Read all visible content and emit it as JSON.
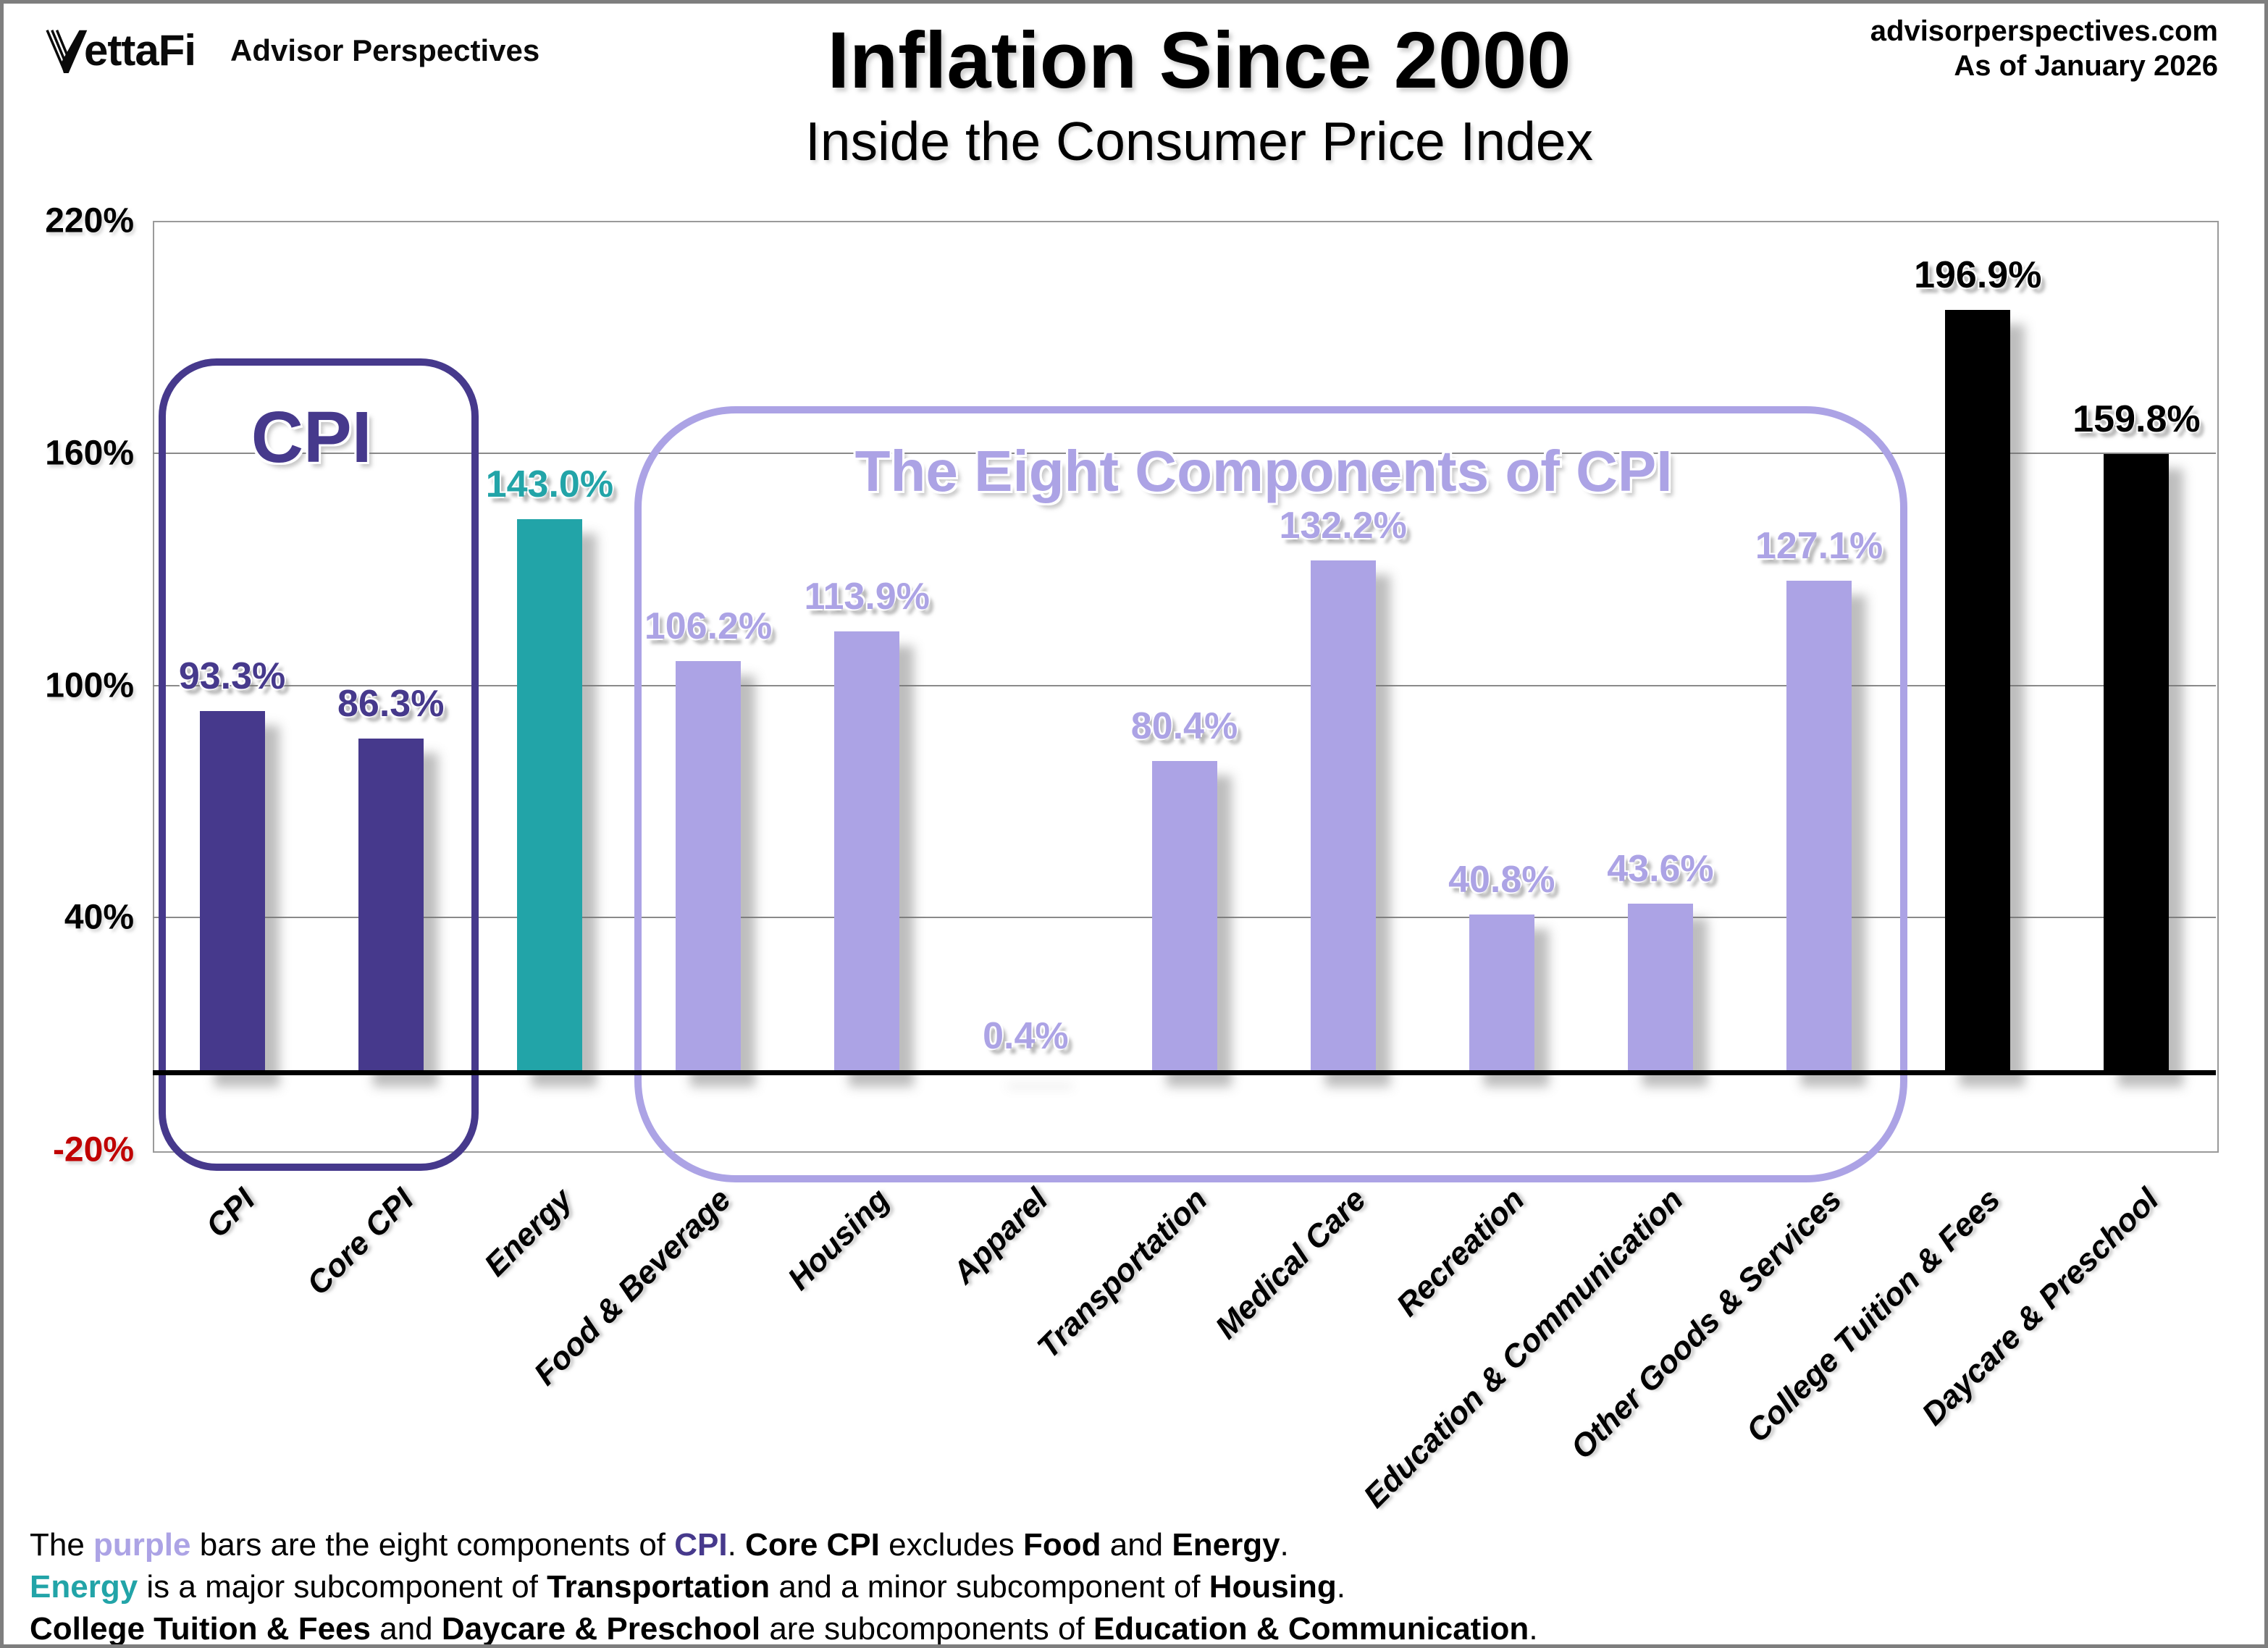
{
  "header": {
    "logo_text": "ettaFi",
    "logo_sub": "Advisor Perspectives",
    "title": "Inflation Since 2000",
    "subtitle": "Inside the Consumer Price Index",
    "source_site": "advisorperspectives.com",
    "as_of": "As of January 2026"
  },
  "colors": {
    "dark_purple": "#46398C",
    "light_purple": "#ACA3E5",
    "teal": "#22A4A8",
    "black": "#000000",
    "red": "#C00000",
    "grid": "#8A8A8A"
  },
  "chart_data": {
    "type": "bar",
    "title": "Inflation Since 2000",
    "subtitle": "Inside the Consumer Price Index",
    "categories": [
      "CPI",
      "Core CPI",
      "Energy",
      "Food & Beverage",
      "Housing",
      "Apparel",
      "Transportation",
      "Medical Care",
      "Recreation",
      "Education & Communication",
      "Other Goods & Services",
      "College Tuition & Fees",
      "Daycare & Preschool"
    ],
    "values": [
      93.3,
      86.3,
      143.0,
      106.2,
      113.9,
      0.4,
      80.4,
      132.2,
      40.8,
      43.6,
      127.1,
      196.9,
      159.8
    ],
    "value_labels": [
      "93.3%",
      "86.3%",
      "143.0%",
      "106.2%",
      "113.9%",
      "0.4%",
      "80.4%",
      "132.2%",
      "40.8%",
      "43.6%",
      "127.1%",
      "196.9%",
      "159.8%"
    ],
    "bar_colors": [
      "#46398C",
      "#46398C",
      "#22A4A8",
      "#ACA3E5",
      "#ACA3E5",
      "#ACA3E5",
      "#ACA3E5",
      "#ACA3E5",
      "#ACA3E5",
      "#ACA3E5",
      "#ACA3E5",
      "#000000",
      "#000000"
    ],
    "label_colors": [
      "#46398C",
      "#46398C",
      "#22A4A8",
      "#ACA3E5",
      "#ACA3E5",
      "#ACA3E5",
      "#ACA3E5",
      "#ACA3E5",
      "#ACA3E5",
      "#ACA3E5",
      "#ACA3E5",
      "#000000",
      "#000000"
    ],
    "ylim": [
      -20,
      220
    ],
    "yticks": [
      {
        "label": "220%",
        "value": 220,
        "color": "#000000"
      },
      {
        "label": "160%",
        "value": 160,
        "color": "#000000"
      },
      {
        "label": "100%",
        "value": 100,
        "color": "#000000"
      },
      {
        "label": "40%",
        "value": 40,
        "color": "#000000"
      },
      {
        "label": "-20%",
        "value": -20,
        "color": "#C00000"
      }
    ],
    "grid": true,
    "zero_line": 0,
    "legend": "none",
    "annotations": [
      {
        "id": "cpi-box",
        "label": "CPI",
        "color": "#46398C",
        "from_cat": 0,
        "to_cat": 1,
        "title_font": 100
      },
      {
        "id": "components-box",
        "label": "The Eight Components of CPI",
        "color": "#ACA3E5",
        "from_cat": 3,
        "to_cat": 10,
        "title_font": 80
      }
    ]
  },
  "footer": {
    "lines": [
      [
        {
          "t": "The "
        },
        {
          "t": "purple",
          "b": true,
          "c": "#ACA3E5"
        },
        {
          "t": " bars are the eight components of "
        },
        {
          "t": "CPI",
          "b": true,
          "c": "#46398C"
        },
        {
          "t": ". "
        },
        {
          "t": "Core CPI",
          "b": true
        },
        {
          "t": " excludes "
        },
        {
          "t": "Food",
          "b": true
        },
        {
          "t": " and "
        },
        {
          "t": "Energy",
          "b": true
        },
        {
          "t": "."
        }
      ],
      [
        {
          "t": "Energy",
          "b": true,
          "c": "#22A4A8"
        },
        {
          "t": " is a major subcomponent of "
        },
        {
          "t": "Transportation",
          "b": true
        },
        {
          "t": " and a minor subcomponent of "
        },
        {
          "t": "Housing",
          "b": true
        },
        {
          "t": "."
        }
      ],
      [
        {
          "t": "College Tuition & Fees",
          "b": true
        },
        {
          "t": " and "
        },
        {
          "t": "Daycare & Preschool",
          "b": true
        },
        {
          "t": " are subcomponents of "
        },
        {
          "t": "Education & Communication",
          "b": true
        },
        {
          "t": "."
        }
      ]
    ]
  }
}
